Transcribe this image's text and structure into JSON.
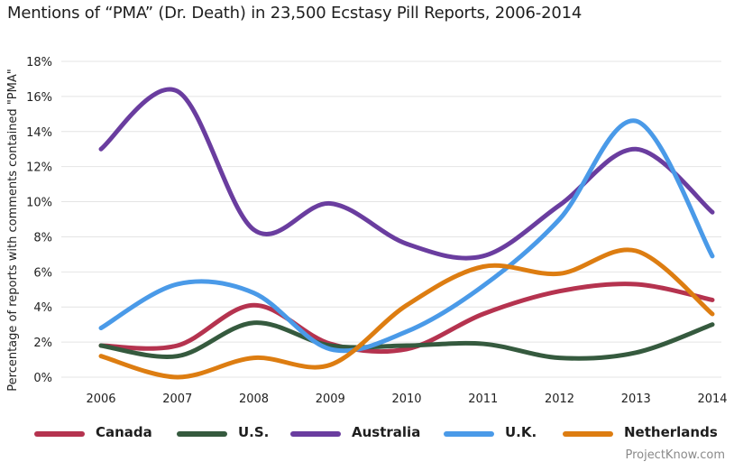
{
  "chart_data": {
    "type": "line",
    "title": "Mentions of “PMA” (Dr. Death) in 23,500 Ecstasy Pill Reports, 2006-2014",
    "xlabel": "",
    "ylabel": "Percentage of reports with comments contained \"PMA\"",
    "x": [
      "2006",
      "2007",
      "2008",
      "2009",
      "2010",
      "2011",
      "2012",
      "2013",
      "2014"
    ],
    "ylim": [
      0,
      18
    ],
    "yticks": [
      "0%",
      "2%",
      "4%",
      "6%",
      "8%",
      "10%",
      "12%",
      "14%",
      "16%",
      "18%"
    ],
    "grid": true,
    "legend_position": "bottom",
    "series": [
      {
        "name": "Canada",
        "color": "#b5334f",
        "values": [
          1.8,
          1.8,
          4.1,
          1.9,
          1.6,
          3.6,
          4.9,
          5.3,
          4.4
        ]
      },
      {
        "name": "U.S.",
        "color": "#355a3e",
        "values": [
          1.8,
          1.2,
          3.1,
          1.8,
          1.8,
          1.9,
          1.1,
          1.4,
          3.0
        ]
      },
      {
        "name": "Australia",
        "color": "#6a3d9f",
        "values": [
          13.0,
          16.3,
          8.4,
          9.9,
          7.6,
          6.9,
          9.8,
          13.0,
          9.4
        ]
      },
      {
        "name": "U.K.",
        "color": "#4a9ae8",
        "values": [
          2.8,
          5.3,
          4.8,
          1.6,
          2.6,
          5.2,
          9.0,
          14.6,
          6.9
        ]
      },
      {
        "name": "Netherlands",
        "color": "#dd7d11",
        "values": [
          1.2,
          0.0,
          1.1,
          0.7,
          4.1,
          6.3,
          5.9,
          7.2,
          3.6
        ]
      }
    ]
  },
  "credit": "ProjectKnow.com"
}
